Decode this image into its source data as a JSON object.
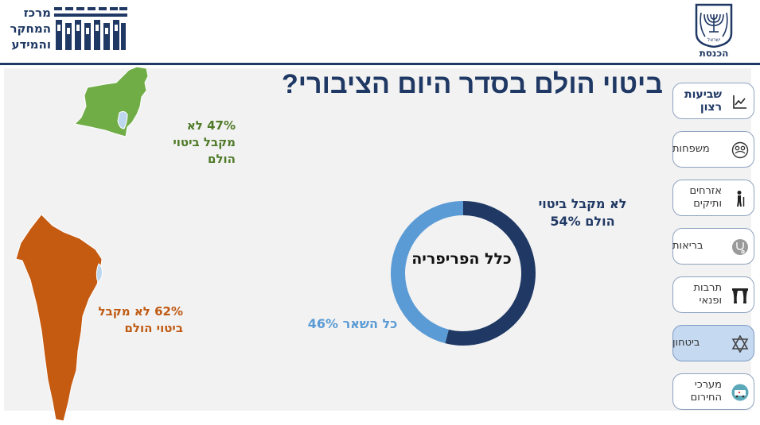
{
  "header": {
    "research_center_name": "מרכז המחקר והמידע",
    "knesset_label": "הכנסת",
    "emblem_text": "ישראל"
  },
  "title": "ביטוי הולם בסדר היום הציבורי?",
  "chart_data": [
    {
      "type": "pie",
      "title": "כלל הפריפריה",
      "slices": [
        {
          "label": "לא מקבל ביטוי הולם",
          "value": 54,
          "color": "#1f3864"
        },
        {
          "label": "כל השאר",
          "value": 46,
          "color": "#5b9bd5"
        }
      ],
      "value_labels": [
        "לא מקבל ביטוי הולם 54%",
        "כל השאר 46%"
      ]
    },
    {
      "type": "table",
      "regions": [
        {
          "label": "47% לא מקבל ביטוי הולם",
          "value": 47,
          "color": "#70ad47"
        },
        {
          "label": "62% לא מקבל ביטוי הולם",
          "value": 62,
          "color": "#c55a11"
        }
      ]
    }
  ],
  "sidebar": {
    "items": [
      {
        "label": "שביעות רצון",
        "icon": "line-chart-icon"
      },
      {
        "label": "משפחות",
        "icon": "family-icon"
      },
      {
        "label": "אזרחים ותיקים",
        "icon": "elderly-icon"
      },
      {
        "label": "בריאות",
        "icon": "stethoscope-icon"
      },
      {
        "label": "תרבות ופנאי",
        "icon": "theater-icon"
      },
      {
        "label": "ביטחון",
        "icon": "star-of-david-icon"
      },
      {
        "label": "מערכי החירום",
        "icon": "ambulance-icon"
      }
    ]
  }
}
